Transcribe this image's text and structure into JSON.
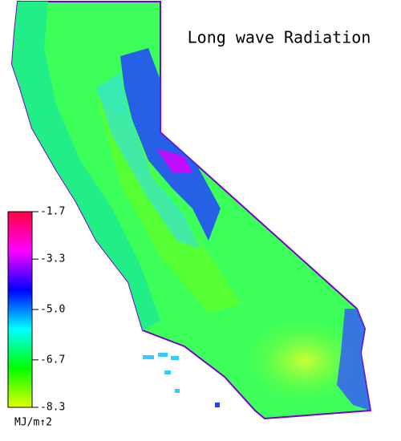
{
  "title": "Long wave Radiation",
  "colorbar": {
    "lim": [
      -8.3,
      -1.7
    ],
    "ticks": [
      -1.7,
      -3.3,
      {
        "value": -5,
        "label": "-5.0"
      },
      -6.7,
      -8.3
    ],
    "colors": [
      "#e0ff00",
      "#00ff00",
      "#00ffff",
      "#0000ff",
      "#ff00ff",
      "#ff0040"
    ],
    "unit": "MJ/m↑2"
  }
}
